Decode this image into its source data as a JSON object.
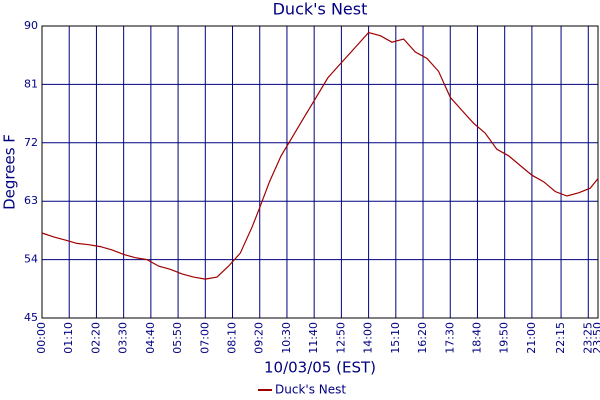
{
  "chart_data": {
    "type": "line",
    "title": "Duck's Nest",
    "y_label": "Degrees F",
    "x_label": "10/03/05 (EST)",
    "x": [
      "00:00",
      "00:30",
      "01:00",
      "01:30",
      "02:00",
      "02:30",
      "03:00",
      "03:30",
      "04:00",
      "04:30",
      "05:00",
      "05:30",
      "06:00",
      "06:30",
      "07:00",
      "07:30",
      "08:00",
      "08:30",
      "09:00",
      "09:20",
      "09:45",
      "10:15",
      "10:45",
      "11:15",
      "11:45",
      "12:15",
      "12:45",
      "13:15",
      "13:45",
      "14:00",
      "14:30",
      "15:00",
      "15:30",
      "16:00",
      "16:30",
      "17:00",
      "17:30",
      "18:00",
      "18:30",
      "19:00",
      "19:30",
      "20:00",
      "20:30",
      "21:00",
      "21:30",
      "22:00",
      "22:30",
      "23:00",
      "23:30",
      "23:50"
    ],
    "series": [
      {
        "name": "Duck's Nest",
        "color": "#a00000",
        "values": [
          58.1,
          57.5,
          57,
          56.5,
          56.3,
          56,
          55.5,
          54.8,
          54.3,
          54,
          53,
          52.5,
          51.8,
          51.3,
          51,
          51.3,
          53,
          55,
          59,
          62,
          66,
          70,
          73,
          76,
          79,
          82,
          84,
          86,
          88,
          89,
          88.5,
          87.5,
          88,
          86,
          85,
          83,
          79,
          77,
          75,
          73.5,
          71,
          70,
          68.5,
          67,
          66,
          64.5,
          63.8,
          64.3,
          65,
          66.5
        ]
      }
    ],
    "xlim": [
      "00:00",
      "23:50"
    ],
    "xticks": [
      "00:00",
      "01:10",
      "02:20",
      "03:30",
      "04:40",
      "05:50",
      "07:00",
      "08:10",
      "09:20",
      "10:30",
      "11:40",
      "12:50",
      "14:00",
      "15:10",
      "16:20",
      "17:30",
      "18:40",
      "19:50",
      "21:00",
      "22:15",
      "23:25",
      "23:50"
    ],
    "ylim": [
      45,
      90
    ],
    "yticks": [
      45,
      54,
      63,
      72,
      81,
      90
    ],
    "grid": true,
    "legend": "bottom"
  }
}
